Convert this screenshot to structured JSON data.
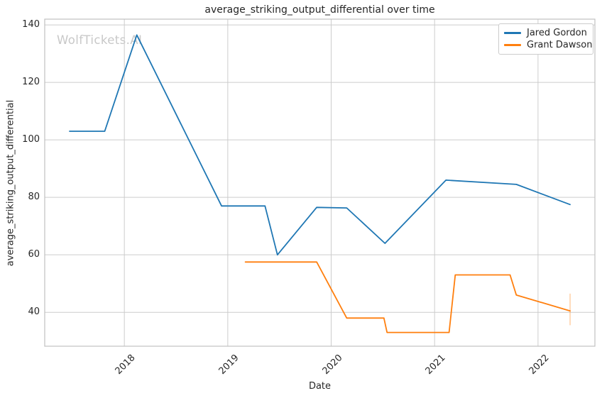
{
  "chart_data": {
    "type": "line",
    "title": "average_striking_output_differential over time",
    "xlabel": "Date",
    "ylabel": "average_striking_output_differential",
    "watermark": "WolfTickets.AI",
    "x_unit": "decimal_year",
    "x_ticks": [
      2018,
      2019,
      2020,
      2021,
      2022
    ],
    "y_ticks": [
      40,
      60,
      80,
      100,
      120,
      140
    ],
    "xlim": [
      2017.23,
      2022.55
    ],
    "ylim": [
      28.2,
      142.0
    ],
    "grid": true,
    "legend_position": "upper right",
    "colors": {
      "text": "#262626",
      "grid": "#cccccc",
      "spine": "#c0c0c0",
      "watermark": "#c8c8c8"
    },
    "series": [
      {
        "name": "Jared Gordon",
        "color": "#1f77b4",
        "x": [
          2017.47,
          2017.81,
          2018.12,
          2018.94,
          2019.36,
          2019.48,
          2019.86,
          2020.15,
          2020.52,
          2021.11,
          2021.79,
          2022.31
        ],
        "y": [
          103,
          103,
          136.5,
          77,
          77,
          60,
          76.5,
          76.3,
          64,
          86,
          84.5,
          77.5
        ]
      },
      {
        "name": "Grant Dawson",
        "color": "#ff7f0e",
        "x": [
          2019.17,
          2019.86,
          2020.15,
          2020.51,
          2020.54,
          2021.14,
          2021.2,
          2021.73,
          2021.79,
          2022.31
        ],
        "y": [
          57.5,
          57.5,
          38,
          38,
          33,
          33,
          53,
          53,
          46,
          40.5
        ],
        "error_bar_last": {
          "x": 2022.31,
          "low": 35.5,
          "high": 46.5
        }
      }
    ]
  }
}
